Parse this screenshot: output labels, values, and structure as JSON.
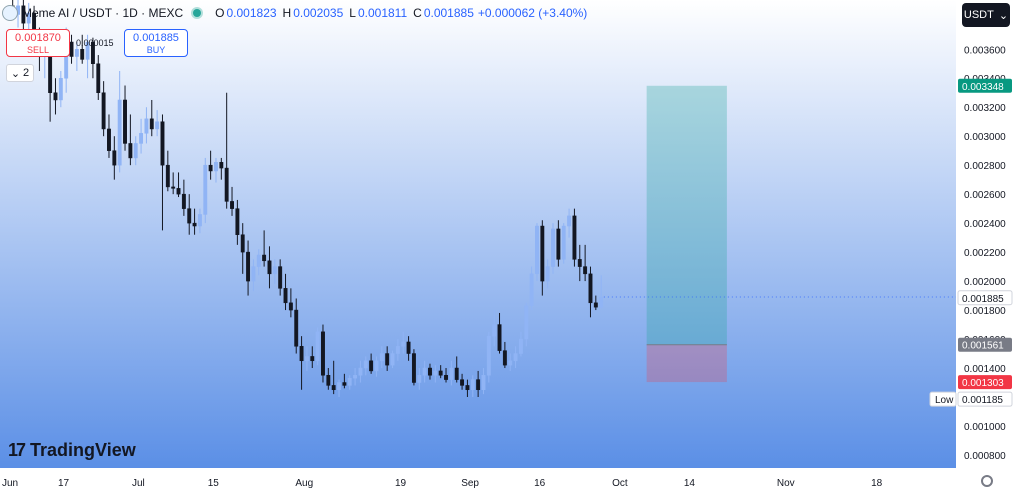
{
  "header": {
    "symbol": "Meme AI / USDT · 1D · MEXC",
    "open_label": "O",
    "open": "0.001823",
    "high_label": "H",
    "high": "0.002035",
    "low_label": "L",
    "low": "0.001811",
    "close_label": "C",
    "close": "0.001885",
    "change": "+0.000062 (+3.40%)"
  },
  "trade": {
    "sell_price": "0.001870",
    "sell_label": "SELL",
    "buy_price": "0.001885",
    "buy_label": "BUY",
    "spread": "0.000015"
  },
  "legend_toggle": "2",
  "currency_button": "USDT",
  "branding": "TradingView",
  "colors": {
    "up": "#2962ff",
    "up_body": "#90b4f5",
    "down": "#131722",
    "target": "#089981",
    "stop": "#f23645",
    "entry": "#787b86",
    "current": "#2962ff"
  },
  "chart_data": {
    "type": "candlestick",
    "ylim": [
      0.00071,
      0.00394
    ],
    "x_ticks": [
      {
        "label": "Jun",
        "day": 0
      },
      {
        "label": "17",
        "day": 10
      },
      {
        "label": "Jul",
        "day": 24
      },
      {
        "label": "15",
        "day": 38
      },
      {
        "label": "Aug",
        "day": 55
      },
      {
        "label": "19",
        "day": 73
      },
      {
        "label": "Sep",
        "day": 86
      },
      {
        "label": "16",
        "day": 99
      },
      {
        "label": "Oct",
        "day": 114
      },
      {
        "label": "14",
        "day": 127
      },
      {
        "label": "Nov",
        "day": 145
      },
      {
        "label": "18",
        "day": 162
      }
    ],
    "y_ticks": [
      "0.003800",
      "0.003600",
      "0.003400",
      "0.003200",
      "0.003000",
      "0.002800",
      "0.002600",
      "0.002400",
      "0.002200",
      "0.002000",
      "0.001800",
      "0.001600",
      "0.001400",
      "0.001200",
      "0.001000",
      "0.000800"
    ],
    "price_labels": [
      {
        "label": "0.003348",
        "value": 0.003348,
        "kind": "target"
      },
      {
        "label": "0.001885",
        "value": 0.001885,
        "kind": "current"
      },
      {
        "label": "0.001561",
        "value": 0.001561,
        "kind": "entry"
      },
      {
        "label": "0.001303",
        "value": 0.001303,
        "kind": "stop"
      },
      {
        "label": "0.001185",
        "value": 0.001185,
        "kind": "low",
        "tag": "Low"
      }
    ],
    "position": {
      "entry": 0.001561,
      "target": 0.003348,
      "stop": 0.001303,
      "start_day": 119,
      "end_day": 134
    },
    "candles": [
      [
        0.0039,
        0.00395,
        0.0038,
        0.00384
      ],
      [
        0.00384,
        0.00395,
        0.00375,
        0.0039
      ],
      [
        0.0039,
        0.00395,
        0.00372,
        0.00378
      ],
      [
        0.00378,
        0.00392,
        0.0036,
        0.00385
      ],
      [
        0.00385,
        0.0039,
        0.00365,
        0.0037
      ],
      [
        0.0037,
        0.00375,
        0.00345,
        0.00355
      ],
      [
        0.00355,
        0.00365,
        0.0034,
        0.0036
      ],
      [
        0.0036,
        0.00368,
        0.0031,
        0.0033
      ],
      [
        0.0033,
        0.0034,
        0.00315,
        0.00325
      ],
      [
        0.00325,
        0.00345,
        0.0032,
        0.0034
      ],
      [
        0.0034,
        0.00375,
        0.0033,
        0.00365
      ],
      [
        0.00365,
        0.0037,
        0.0035,
        0.00355
      ],
      [
        0.00355,
        0.00365,
        0.00345,
        0.0036
      ],
      [
        0.0036,
        0.0037,
        0.0035,
        0.00353
      ],
      [
        0.00353,
        0.0037,
        0.0034,
        0.00365
      ],
      [
        0.00365,
        0.00368,
        0.0034,
        0.0035
      ],
      [
        0.0035,
        0.00356,
        0.00325,
        0.0033
      ],
      [
        0.0033,
        0.00338,
        0.003,
        0.00305
      ],
      [
        0.00305,
        0.00315,
        0.00285,
        0.0029
      ],
      [
        0.0029,
        0.003,
        0.0027,
        0.0028
      ],
      [
        0.0028,
        0.00345,
        0.00275,
        0.00325
      ],
      [
        0.00325,
        0.00335,
        0.0029,
        0.00295
      ],
      [
        0.00295,
        0.00315,
        0.0028,
        0.00285
      ],
      [
        0.00285,
        0.003,
        0.0028,
        0.00295
      ],
      [
        0.00295,
        0.00312,
        0.00288,
        0.00302
      ],
      [
        0.00302,
        0.0032,
        0.00295,
        0.00312
      ],
      [
        0.00312,
        0.00325,
        0.003,
        0.00305
      ],
      [
        0.00305,
        0.00318,
        0.003,
        0.0031
      ],
      [
        0.0031,
        0.00315,
        0.00235,
        0.0028
      ],
      [
        0.0028,
        0.0029,
        0.00262,
        0.00265
      ],
      [
        0.00265,
        0.00275,
        0.0026,
        0.00264
      ],
      [
        0.00264,
        0.00275,
        0.00258,
        0.0026
      ],
      [
        0.0026,
        0.0027,
        0.00245,
        0.0025
      ],
      [
        0.0025,
        0.0026,
        0.00232,
        0.0024
      ],
      [
        0.0024,
        0.0025,
        0.00232,
        0.00238
      ],
      [
        0.00238,
        0.0025,
        0.00233,
        0.00246
      ],
      [
        0.00246,
        0.00285,
        0.0024,
        0.0028
      ],
      [
        0.0028,
        0.0029,
        0.0027,
        0.00276
      ],
      [
        0.00276,
        0.00285,
        0.00268,
        0.00282
      ],
      [
        0.00282,
        0.00285,
        0.0027,
        0.00278
      ],
      [
        0.00278,
        0.0033,
        0.0025,
        0.00255
      ],
      [
        0.00255,
        0.00265,
        0.00245,
        0.0025
      ],
      [
        0.0025,
        0.00256,
        0.00225,
        0.00232
      ],
      [
        0.00232,
        0.0024,
        0.00205,
        0.0022
      ],
      [
        0.0022,
        0.00228,
        0.0019,
        0.002
      ],
      [
        0.002,
        0.00215,
        0.00193,
        0.0021
      ],
      [
        0.0021,
        0.00222,
        0.00204,
        0.00218
      ],
      [
        0.00218,
        0.00235,
        0.0021,
        0.00214
      ],
      [
        0.00214,
        0.00224,
        0.00195,
        0.00205
      ],
      [
        0.00205,
        0.00215,
        0.00198,
        0.0021
      ],
      [
        0.0021,
        0.00215,
        0.0019,
        0.00195
      ],
      [
        0.00195,
        0.00205,
        0.0018,
        0.00185
      ],
      [
        0.00185,
        0.00195,
        0.00175,
        0.0018
      ],
      [
        0.0018,
        0.00188,
        0.0015,
        0.00155
      ],
      [
        0.00155,
        0.00162,
        0.00125,
        0.00145
      ],
      [
        0.00145,
        0.00155,
        0.00138,
        0.00148
      ],
      [
        0.00148,
        0.00155,
        0.0014,
        0.00145
      ],
      [
        0.00145,
        0.00168,
        0.00142,
        0.00165
      ],
      [
        0.00165,
        0.0017,
        0.0013,
        0.00135
      ],
      [
        0.00135,
        0.0014,
        0.00125,
        0.00128
      ],
      [
        0.00128,
        0.00145,
        0.00122,
        0.00125
      ],
      [
        0.00125,
        0.00132,
        0.0012,
        0.0013
      ],
      [
        0.0013,
        0.00136,
        0.00126,
        0.00128
      ],
      [
        0.00128,
        0.00135,
        0.00125,
        0.00133
      ],
      [
        0.00133,
        0.0014,
        0.00128,
        0.00135
      ],
      [
        0.00135,
        0.00145,
        0.0013,
        0.0014
      ],
      [
        0.0014,
        0.00148,
        0.00135,
        0.00145
      ],
      [
        0.00145,
        0.0015,
        0.00136,
        0.00138
      ],
      [
        0.00138,
        0.00148,
        0.00134,
        0.00145
      ],
      [
        0.00145,
        0.00155,
        0.0014,
        0.0015
      ],
      [
        0.0015,
        0.00155,
        0.00138,
        0.00142
      ],
      [
        0.00142,
        0.00152,
        0.0014,
        0.0015
      ],
      [
        0.0015,
        0.0016,
        0.00145,
        0.00155
      ],
      [
        0.00155,
        0.00165,
        0.0015,
        0.00158
      ],
      [
        0.00158,
        0.00162,
        0.00145,
        0.0015
      ],
      [
        0.0015,
        0.00153,
        0.00128,
        0.0013
      ],
      [
        0.0013,
        0.0014,
        0.00125,
        0.00135
      ],
      [
        0.00135,
        0.00145,
        0.0013,
        0.0014
      ],
      [
        0.0014,
        0.00143,
        0.00132,
        0.00135
      ],
      [
        0.00135,
        0.00142,
        0.0013,
        0.00138
      ],
      [
        0.00138,
        0.00142,
        0.00133,
        0.00135
      ],
      [
        0.00135,
        0.0014,
        0.0013,
        0.00132
      ],
      [
        0.00132,
        0.00145,
        0.00128,
        0.0014
      ],
      [
        0.0014,
        0.00148,
        0.0013,
        0.00132
      ],
      [
        0.00132,
        0.00136,
        0.00125,
        0.00128
      ],
      [
        0.00128,
        0.00132,
        0.0012,
        0.00125
      ],
      [
        0.00125,
        0.00135,
        0.0012,
        0.00132
      ],
      [
        0.00132,
        0.00138,
        0.0012,
        0.00125
      ],
      [
        0.00125,
        0.0014,
        0.00122,
        0.00135
      ],
      [
        0.00135,
        0.00165,
        0.0013,
        0.00162
      ],
      [
        0.00162,
        0.0018,
        0.00155,
        0.0017
      ],
      [
        0.0017,
        0.00178,
        0.0015,
        0.00152
      ],
      [
        0.00152,
        0.00158,
        0.0014,
        0.00142
      ],
      [
        0.00142,
        0.0015,
        0.00138,
        0.00145
      ],
      [
        0.00145,
        0.00155,
        0.0014,
        0.0015
      ],
      [
        0.0015,
        0.00165,
        0.00148,
        0.0016
      ],
      [
        0.0016,
        0.00185,
        0.00155,
        0.00183
      ],
      [
        0.00183,
        0.0021,
        0.0018,
        0.00205
      ],
      [
        0.00205,
        0.0024,
        0.002,
        0.00238
      ],
      [
        0.00238,
        0.00242,
        0.0019,
        0.002
      ],
      [
        0.002,
        0.00215,
        0.00195,
        0.0021
      ],
      [
        0.0021,
        0.0024,
        0.00205,
        0.00236
      ],
      [
        0.00236,
        0.00242,
        0.0021,
        0.00215
      ],
      [
        0.00215,
        0.0024,
        0.00212,
        0.00238
      ],
      [
        0.00238,
        0.0025,
        0.0023,
        0.00245
      ],
      [
        0.00245,
        0.0025,
        0.0021,
        0.00215
      ],
      [
        0.00215,
        0.00225,
        0.002,
        0.0021
      ],
      [
        0.0021,
        0.00225,
        0.002,
        0.00205
      ],
      [
        0.00205,
        0.0021,
        0.00175,
        0.00185
      ],
      [
        0.00185,
        0.0019,
        0.0018,
        0.00182
      ],
      [
        0.00182,
        0.00204,
        0.00181,
        0.00189
      ]
    ]
  }
}
